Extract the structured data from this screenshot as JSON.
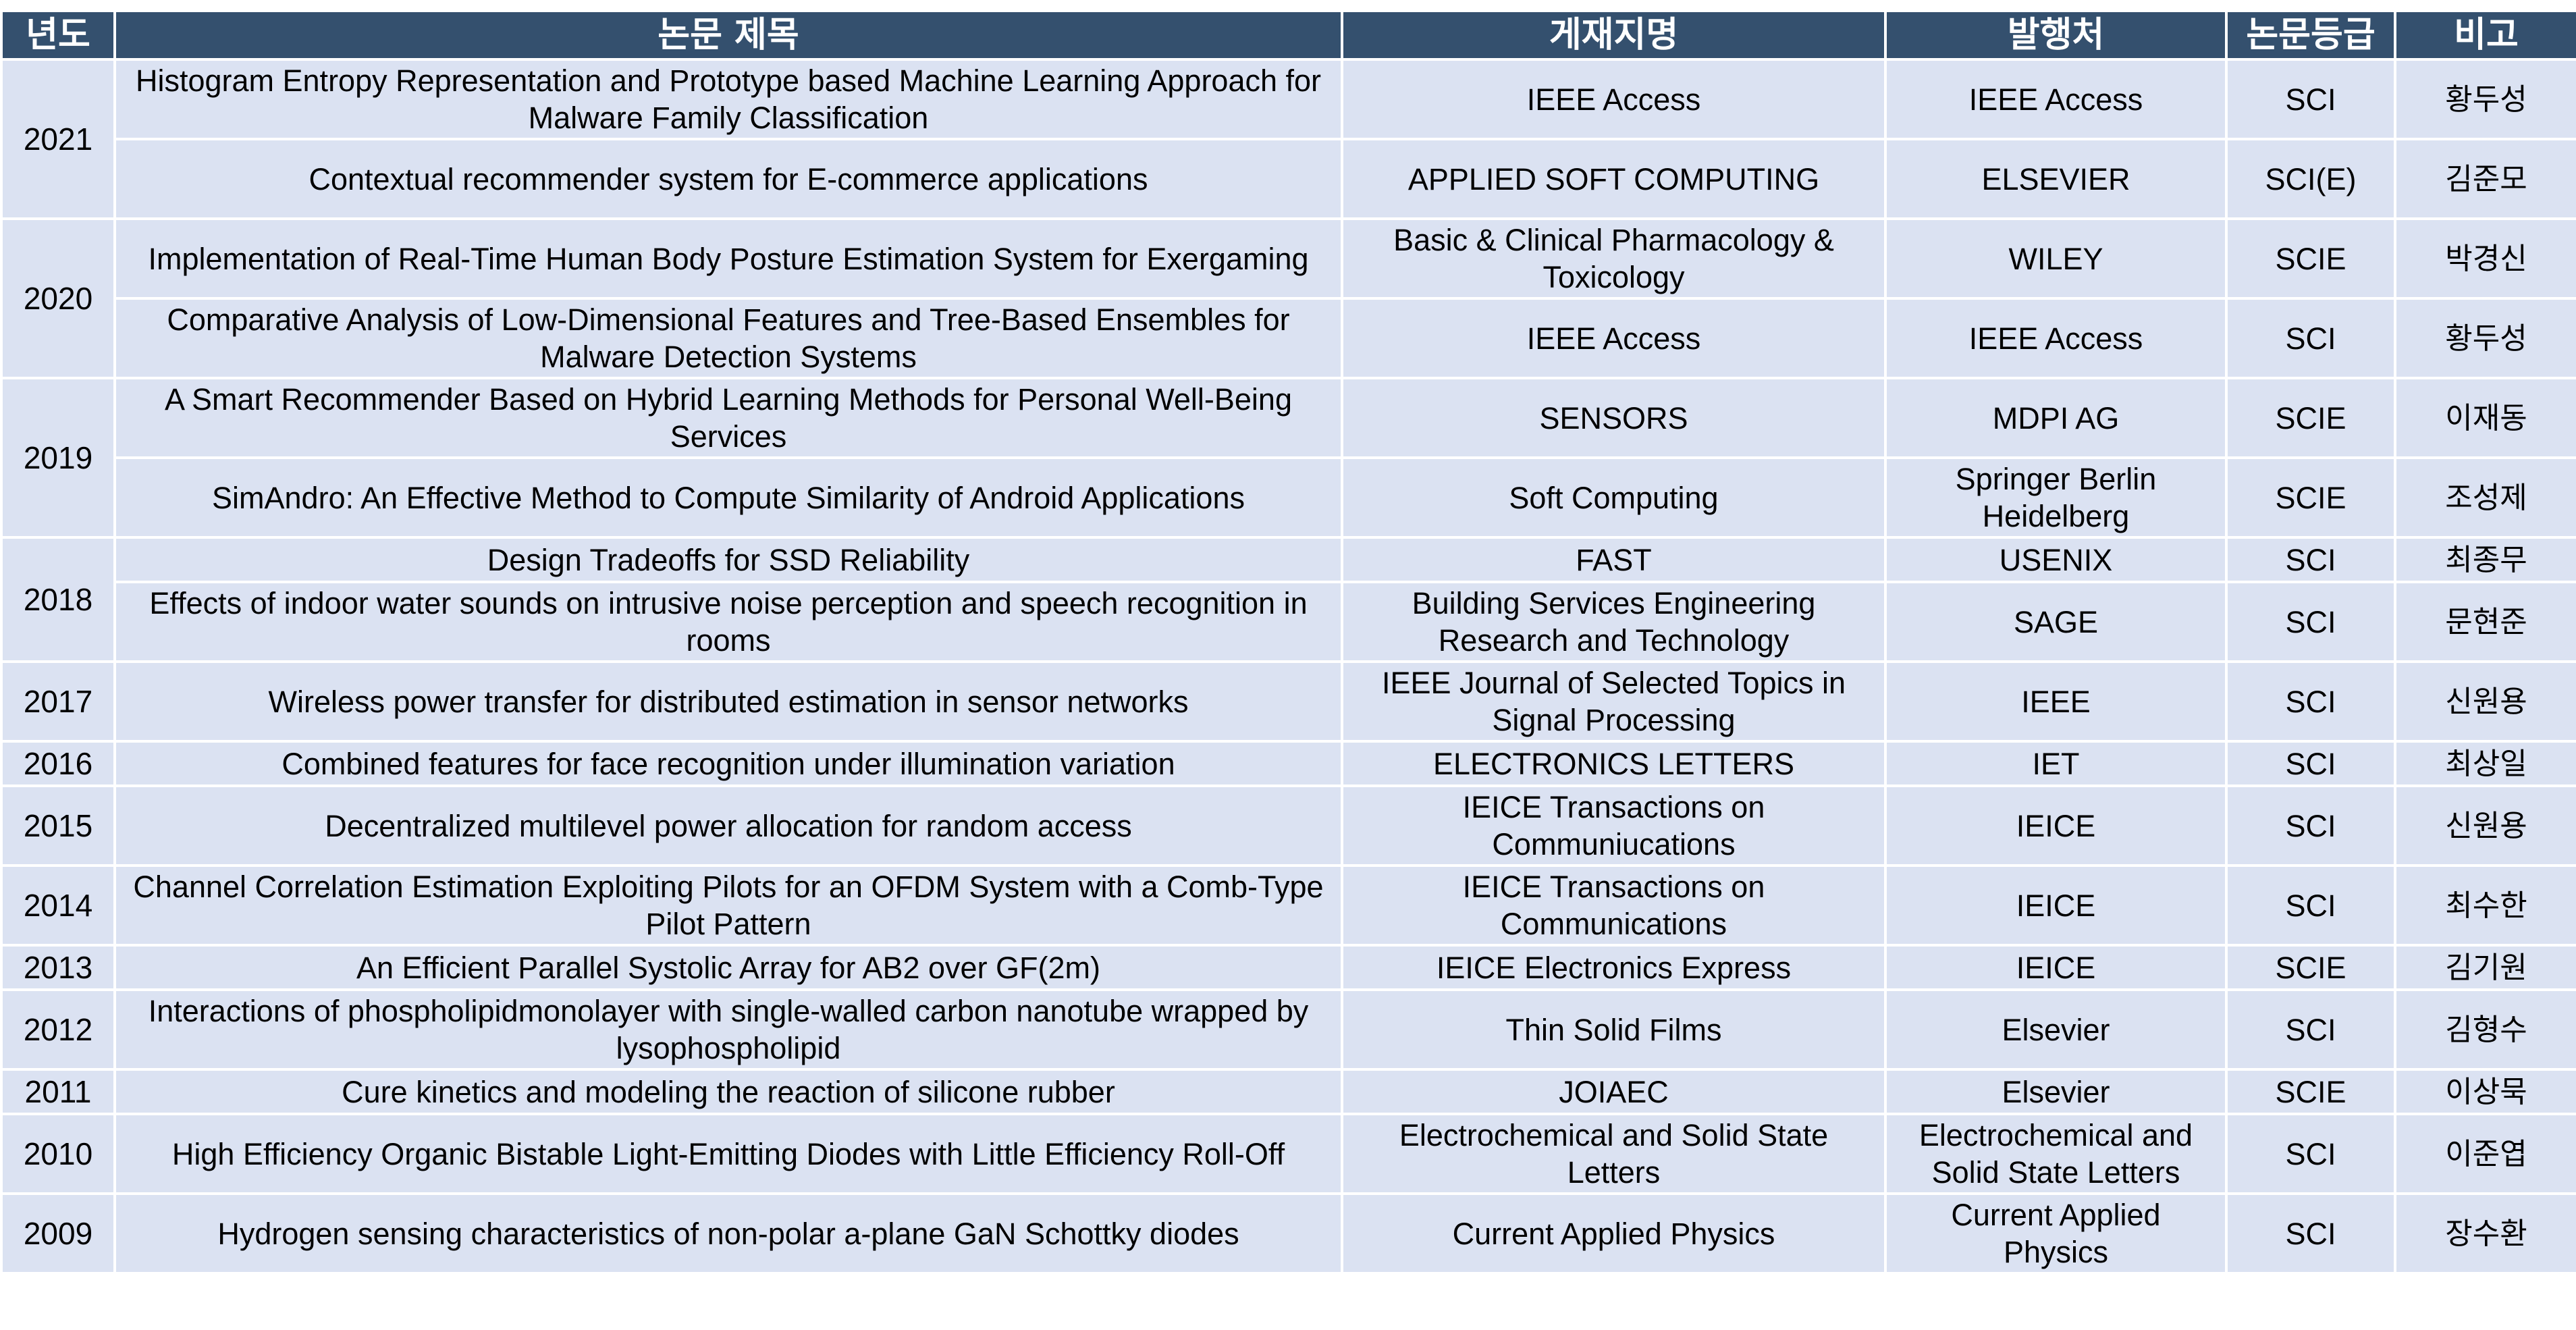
{
  "headers": {
    "year": "년도",
    "title": "논문 제목",
    "journal": "게재지명",
    "publisher": "발행처",
    "grade": "논문등급",
    "note": "비고"
  },
  "years": [
    "2021",
    "2020",
    "2019",
    "2018",
    "2017",
    "2016",
    "2015",
    "2014",
    "2013",
    "2012",
    "2011",
    "2010",
    "2009"
  ],
  "rows": [
    {
      "title": "Histogram Entropy Representation and Prototype based Machine Learning Approach for Malware Family Classification",
      "journal": "IEEE Access",
      "publisher": "IEEE Access",
      "grade": "SCI",
      "note": "황두성"
    },
    {
      "title": "Contextual recommender system for E-commerce applications",
      "journal": "APPLIED SOFT COMPUTING",
      "publisher": "ELSEVIER",
      "grade": "SCI(E)",
      "note": "김준모"
    },
    {
      "title": "Implementation of Real-Time Human Body Posture Estimation System for Exergaming",
      "journal": "Basic & Clinical Pharmacology & Toxicology",
      "publisher": "WILEY",
      "grade": "SCIE",
      "note": "박경신"
    },
    {
      "title": "Comparative Analysis of Low-Dimensional Features and Tree-Based Ensembles for Malware Detection Systems",
      "journal": "IEEE Access",
      "publisher": "IEEE Access",
      "grade": "SCI",
      "note": "황두성"
    },
    {
      "title": "A Smart Recommender Based on Hybrid Learning Methods for Personal Well-Being Services",
      "journal": "SENSORS",
      "publisher": "MDPI AG",
      "grade": "SCIE",
      "note": "이재동"
    },
    {
      "title": "SimAndro: An Effective Method to Compute Similarity of Android Applications",
      "journal": "Soft Computing",
      "publisher": "Springer Berlin Heidelberg",
      "grade": "SCIE",
      "note": "조성제"
    },
    {
      "title": "Design Tradeoffs for SSD Reliability",
      "journal": "FAST",
      "publisher": "USENIX",
      "grade": "SCI",
      "note": "최종무"
    },
    {
      "title": "Effects of indoor water sounds on intrusive noise perception and speech recognition in rooms",
      "journal": "Building Services Engineering Research and Technology",
      "publisher": "SAGE",
      "grade": "SCI",
      "note": "문현준"
    },
    {
      "title": "Wireless power transfer for distributed estimation in sensor networks",
      "journal": "IEEE Journal of Selected Topics in Signal Processing",
      "publisher": "IEEE",
      "grade": "SCI",
      "note": "신원용"
    },
    {
      "title": "Combined features for face recognition under illumination variation",
      "journal": "ELECTRONICS LETTERS",
      "publisher": "IET",
      "grade": "SCI",
      "note": "최상일"
    },
    {
      "title": "Decentralized multilevel power allocation for random access",
      "journal": "IEICE Transactions on Communiucations",
      "publisher": "IEICE",
      "grade": "SCI",
      "note": "신원용"
    },
    {
      "title": "Channel Correlation Estimation Exploiting Pilots for an OFDM System with a Comb-Type Pilot Pattern",
      "journal": "IEICE Transactions on Communications",
      "publisher": "IEICE",
      "grade": "SCI",
      "note": "최수한"
    },
    {
      "title": "An Efficient Parallel Systolic Array for AB2 over GF(2m)",
      "journal": "IEICE Electronics Express",
      "publisher": "IEICE",
      "grade": "SCIE",
      "note": "김기원"
    },
    {
      "title": "Interactions of phospholipidmonolayer with single-walled carbon nanotube wrapped by lysophospholipid",
      "journal": "Thin Solid Films",
      "publisher": "Elsevier",
      "grade": "SCI",
      "note": "김형수"
    },
    {
      "title": "Cure kinetics and modeling the reaction of silicone rubber",
      "journal": "JOIAEC",
      "publisher": "Elsevier",
      "grade": "SCIE",
      "note": "이상묵"
    },
    {
      "title": "High Efficiency Organic Bistable Light-Emitting Diodes with Little Efficiency Roll-Off",
      "journal": "Electrochemical and Solid State Letters",
      "publisher": "Electrochemical and Solid State Letters",
      "grade": "SCI",
      "note": "이준엽"
    },
    {
      "title": "Hydrogen sensing characteristics of non-polar a-plane GaN Schottky diodes",
      "journal": "Current Applied Physics",
      "publisher": "Current Applied Physics",
      "grade": "SCI",
      "note": "장수환"
    }
  ]
}
